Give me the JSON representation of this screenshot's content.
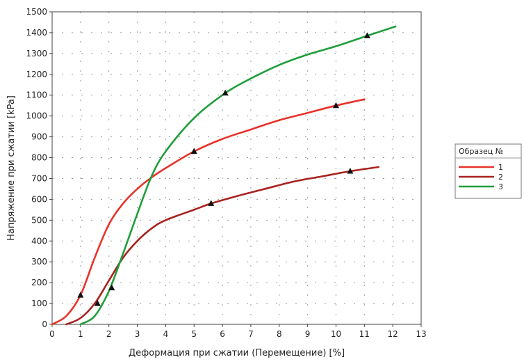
{
  "chart_data": {
    "type": "line",
    "xlabel": "Деформация при сжатии (Перемещение) [%]",
    "ylabel": "Напряжение при сжатии [kPa]",
    "xlim": [
      0,
      13
    ],
    "ylim": [
      0,
      1500
    ],
    "xticks": [
      0,
      1,
      2,
      3,
      4,
      5,
      6,
      7,
      8,
      9,
      10,
      11,
      12,
      13
    ],
    "yticks": [
      0,
      100,
      200,
      300,
      400,
      500,
      600,
      700,
      800,
      900,
      1000,
      1100,
      1200,
      1300,
      1400,
      1500
    ],
    "grid": "dotted",
    "legend": {
      "title": "Образец №",
      "placement": "right"
    },
    "series": [
      {
        "name": "1",
        "color": "#e8322a",
        "x": [
          0,
          0.5,
          1.0,
          1.5,
          2.0,
          2.5,
          3.0,
          3.5,
          4.0,
          5.0,
          6.0,
          7.0,
          8.0,
          9.0,
          10.0,
          11.0
        ],
        "y": [
          0,
          40,
          140,
          320,
          480,
          580,
          650,
          705,
          750,
          830,
          890,
          935,
          980,
          1015,
          1050,
          1080
        ],
        "markers": [
          {
            "x": 1.0,
            "y": 140
          },
          {
            "x": 5.0,
            "y": 830
          },
          {
            "x": 10.0,
            "y": 1050
          }
        ]
      },
      {
        "name": "2",
        "color": "#a8231f",
        "x": [
          0.5,
          1.0,
          1.5,
          2.0,
          2.5,
          3.0,
          3.5,
          4.0,
          5.0,
          5.6,
          6.5,
          7.5,
          8.5,
          9.5,
          10.5,
          11.5
        ],
        "y": [
          0,
          30,
          100,
          210,
          320,
          400,
          460,
          500,
          550,
          580,
          615,
          650,
          685,
          710,
          735,
          755
        ],
        "markers": [
          {
            "x": 1.6,
            "y": 100
          },
          {
            "x": 5.6,
            "y": 580
          },
          {
            "x": 10.5,
            "y": 735
          }
        ]
      },
      {
        "name": "3",
        "color": "#1f9e3a",
        "x": [
          1.0,
          1.5,
          2.0,
          2.5,
          3.0,
          3.5,
          4.0,
          5.0,
          6.1,
          7.0,
          8.0,
          9.0,
          10.0,
          11.1,
          12.1
        ],
        "y": [
          0,
          40,
          160,
          340,
          530,
          710,
          830,
          990,
          1110,
          1180,
          1245,
          1295,
          1335,
          1385,
          1430
        ],
        "markers": [
          {
            "x": 2.1,
            "y": 175
          },
          {
            "x": 6.1,
            "y": 1110
          },
          {
            "x": 11.1,
            "y": 1385
          }
        ]
      }
    ]
  }
}
